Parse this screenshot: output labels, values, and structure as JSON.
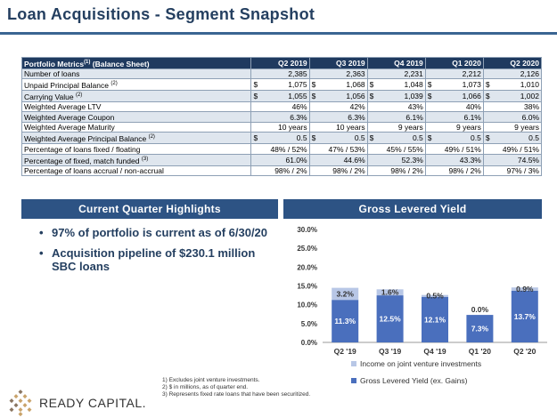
{
  "page": {
    "title": "Loan Acquisitions - Segment Snapshot"
  },
  "table": {
    "header_label": "Portfolio Metrics",
    "header_sup": "(1)",
    "header_suffix": " (Balance Sheet)",
    "columns": [
      "Q2 2019",
      "Q3 2019",
      "Q4 2019",
      "Q1 2020",
      "Q2 2020"
    ],
    "rows": [
      {
        "label": "Number of loans",
        "sup": "",
        "currency": false,
        "values": [
          "2,385",
          "2,363",
          "2,231",
          "2,212",
          "2,126"
        ]
      },
      {
        "label": "Unpaid Principal Balance",
        "sup": "(2)",
        "currency": true,
        "values": [
          "1,075",
          "1,068",
          "1,048",
          "1,073",
          "1,010"
        ]
      },
      {
        "label": "Carrying Value",
        "sup": "(2)",
        "currency": true,
        "values": [
          "1,055",
          "1,056",
          "1,039",
          "1,066",
          "1,002"
        ]
      },
      {
        "label": "Weighted Average LTV",
        "sup": "",
        "currency": false,
        "values": [
          "46%",
          "42%",
          "43%",
          "40%",
          "38%"
        ]
      },
      {
        "label": "Weighted Average Coupon",
        "sup": "",
        "currency": false,
        "values": [
          "6.3%",
          "6.3%",
          "6.1%",
          "6.1%",
          "6.0%"
        ]
      },
      {
        "label": "Weighted Average Maturity",
        "sup": "",
        "currency": false,
        "values": [
          "10 years",
          "10 years",
          "9 years",
          "9 years",
          "9 years"
        ]
      },
      {
        "label": "Weighted Average Principal Balance",
        "sup": "(2)",
        "currency": true,
        "values": [
          "0.5",
          "0.5",
          "0.5",
          "0.5",
          "0.5"
        ]
      },
      {
        "label": "Percentage of loans fixed / floating",
        "sup": "",
        "currency": false,
        "values": [
          "48% / 52%",
          "47% / 53%",
          "45% / 55%",
          "49% / 51%",
          "49% / 51%"
        ]
      },
      {
        "label": "Percentage of fixed, match funded",
        "sup": "(3)",
        "currency": false,
        "values": [
          "61.0%",
          "44.6%",
          "52.3%",
          "43.3%",
          "74.5%"
        ]
      },
      {
        "label": "Percentage of loans accrual / non-accrual",
        "sup": "",
        "currency": false,
        "values": [
          "98% / 2%",
          "98% / 2%",
          "98% / 2%",
          "98% / 2%",
          "97% / 3%"
        ]
      }
    ],
    "currency_symbol": "$"
  },
  "highlights": {
    "title": "Current Quarter Highlights",
    "bullets": [
      "97% of portfolio is current as of 6/30/20",
      "Acquisition pipeline of $230.1 million SBC loans"
    ]
  },
  "yield_panel": {
    "title": "Gross Levered Yield"
  },
  "chart_data": {
    "type": "bar",
    "stacked": true,
    "categories": [
      "Q2 '19",
      "Q3 '19",
      "Q4 '19",
      "Q1 '20",
      "Q2 '20"
    ],
    "series": [
      {
        "name": "Gross Levered Yield (ex. Gains)",
        "color": "#4a6fbd",
        "values": [
          11.3,
          12.5,
          12.1,
          7.3,
          13.7
        ],
        "labels": [
          "11.3%",
          "12.5%",
          "12.1%",
          "7.3%",
          "13.7%"
        ]
      },
      {
        "name": "Income on joint venture investments",
        "color": "#b8c7e6",
        "values": [
          3.2,
          1.6,
          0.5,
          0.0,
          0.9
        ],
        "labels": [
          "3.2%",
          "1.6%",
          "0.5%",
          "0.0%",
          "0.9%"
        ]
      }
    ],
    "ylim": [
      0,
      30
    ],
    "yticks": [
      "0.0%",
      "5.0%",
      "10.0%",
      "15.0%",
      "20.0%",
      "25.0%",
      "30.0%"
    ],
    "legend_position": "bottom",
    "grid": false
  },
  "footnotes": [
    "1)   Excludes joint venture investments.",
    "2)   $ in millions, as of quarter end.",
    "3)   Represents fixed rate loans that have been securitized."
  ],
  "logo": {
    "text": "READY CAPITAL.",
    "colors": [
      "#c9a36b",
      "#8a7560"
    ]
  }
}
